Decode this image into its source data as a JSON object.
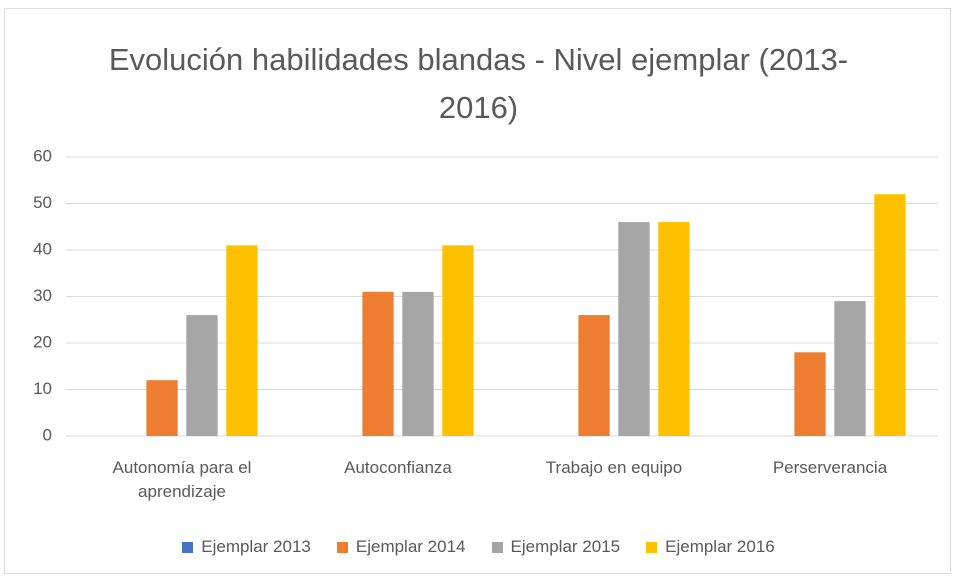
{
  "chart_data": {
    "type": "bar",
    "title": "Evolución habilidades blandas - Nivel ejemplar (2013-2016)",
    "categories": [
      "Autonomía para el aprendizaje",
      "Autoconfianza",
      "Trabajo en equipo",
      "Perserverancia"
    ],
    "series": [
      {
        "name": "Ejemplar 2013",
        "color": "#4472c4",
        "values": [
          0,
          0,
          0,
          0
        ]
      },
      {
        "name": "Ejemplar 2014",
        "color": "#ed7d31",
        "values": [
          12,
          31,
          26,
          18
        ]
      },
      {
        "name": "Ejemplar 2015",
        "color": "#a5a5a5",
        "values": [
          26,
          31,
          46,
          29
        ]
      },
      {
        "name": "Ejemplar 2016",
        "color": "#ffc000",
        "values": [
          41,
          41,
          46,
          52
        ]
      }
    ],
    "ylim": [
      0,
      60
    ],
    "yticks": [
      0,
      10,
      20,
      30,
      40,
      50,
      60
    ],
    "grid": true,
    "legend": "bottom"
  }
}
